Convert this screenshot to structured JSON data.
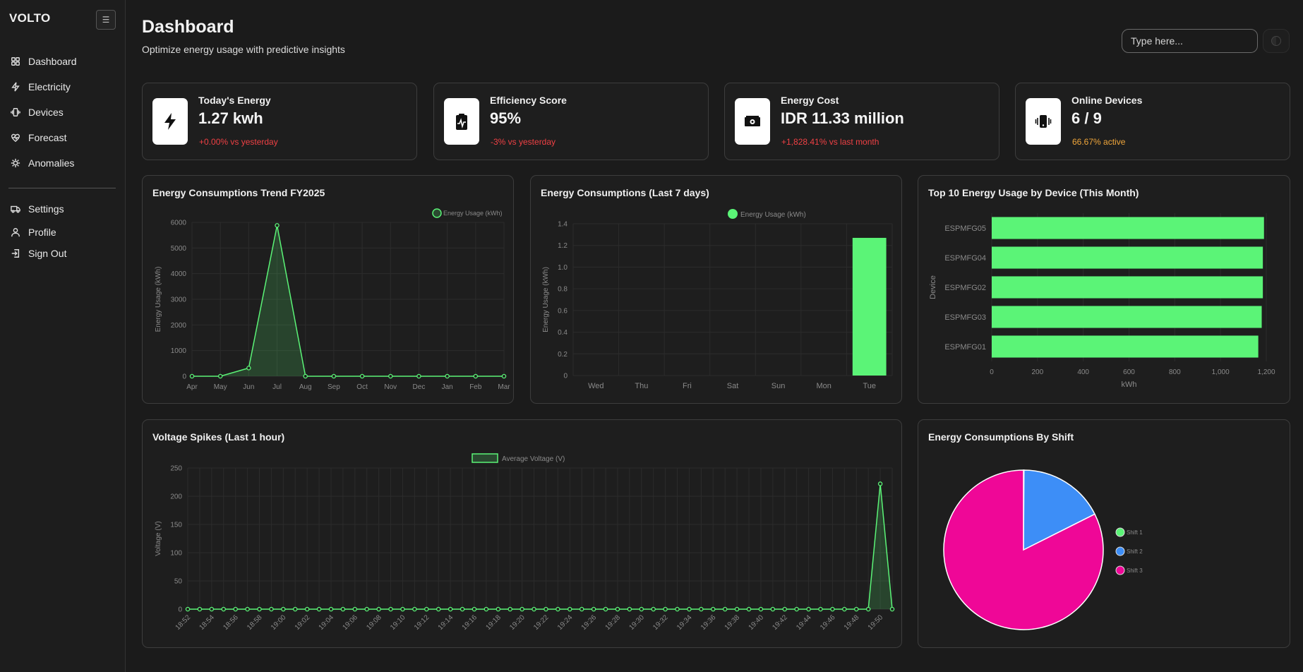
{
  "sidebar": {
    "logo": "VOLTO",
    "toggle_icon": "☰",
    "items": [
      {
        "label": "Dashboard",
        "icon": "grid-icon"
      },
      {
        "label": "Electricity",
        "icon": "bolt-icon"
      },
      {
        "label": "Devices",
        "icon": "device-icon"
      },
      {
        "label": "Forecast",
        "icon": "heart-pulse-icon"
      },
      {
        "label": "Anomalies",
        "icon": "bug-icon"
      }
    ],
    "bottom_items": [
      {
        "label": "Settings",
        "icon": "truck-icon"
      },
      {
        "label": "Profile",
        "icon": "user-icon"
      },
      {
        "label": "Sign Out",
        "icon": "sign-out-icon"
      }
    ]
  },
  "header": {
    "title": "Dashboard",
    "subtitle": "Optimize energy usage with predictive insights",
    "search_placeholder": "Type here..."
  },
  "stats": [
    {
      "label": "Today's Energy",
      "value": "1.27 kwh",
      "delta": "+0.00% vs yesterday",
      "delta_color": "#ef4044",
      "icon": "bolt-icon"
    },
    {
      "label": "Efficiency Score",
      "value": "95%",
      "delta": "-3% vs yesterday",
      "delta_color": "#ef4044",
      "icon": "clipboard-pulse-icon"
    },
    {
      "label": "Energy Cost",
      "value": "IDR 11.33 million",
      "delta": "+1,828.41% vs last month",
      "delta_color": "#ef4044",
      "icon": "money-icon"
    },
    {
      "label": "Online Devices",
      "value": "6 / 9",
      "delta": "66.67% active",
      "delta_color": "#f0a63b",
      "icon": "phone-vibrate-icon"
    }
  ],
  "accent": "#5bf477",
  "chart_data": [
    {
      "type": "area",
      "title": "Energy Consumptions Trend FY2025",
      "categories": [
        "Apr",
        "May",
        "Jun",
        "Jul",
        "Aug",
        "Sep",
        "Oct",
        "Nov",
        "Dec",
        "Jan",
        "Feb",
        "Mar"
      ],
      "series": [
        {
          "name": "Energy Usage (kWh)",
          "values": [
            0,
            0,
            320,
            5880,
            0,
            0,
            0,
            0,
            0,
            0,
            0,
            0
          ]
        }
      ],
      "ylabel": "Energy Usage (kWh)",
      "ylim": [
        0,
        6000
      ],
      "yticks": [
        "0",
        "1000",
        "2000",
        "3000",
        "4000",
        "5000",
        "6000"
      ],
      "legend": "top-right"
    },
    {
      "type": "bar",
      "title": "Energy Consumptions (Last 7 days)",
      "categories": [
        "Wed",
        "Thu",
        "Fri",
        "Sat",
        "Sun",
        "Mon",
        "Tue"
      ],
      "series": [
        {
          "name": "Energy Usage (kWh)",
          "values": [
            0,
            0,
            0,
            0,
            0,
            0,
            1.27
          ]
        }
      ],
      "ylabel": "Energy Usage (kWh)",
      "ylim": [
        0,
        1.4
      ],
      "yticks": [
        "0",
        "0.2",
        "0.4",
        "0.6",
        "0.8",
        "1.0",
        "1.2",
        "1.4"
      ],
      "legend": "top"
    },
    {
      "type": "bar",
      "orientation": "horizontal",
      "title": "Top 10 Energy Usage by Device (This Month)",
      "categories": [
        "ESPMFG05",
        "ESPMFG04",
        "ESPMFG02",
        "ESPMFG03",
        "ESPMFG01"
      ],
      "values": [
        1190,
        1185,
        1185,
        1180,
        1165
      ],
      "xlabel": "kWh",
      "ylabel": "Device",
      "xlim": [
        0,
        1200
      ],
      "xticks": [
        "0",
        "200",
        "400",
        "600",
        "800",
        "1,000",
        "1,200"
      ]
    },
    {
      "type": "area",
      "title": "Voltage Spikes (Last 1 hour)",
      "x_labels": [
        "18:52",
        "18:54",
        "18:56",
        "18:58",
        "19:00",
        "19:02",
        "19:04",
        "19:06",
        "19:08",
        "19:10",
        "19:12",
        "19:14",
        "19:16",
        "19:18",
        "19:20",
        "19:22",
        "19:24",
        "19:26",
        "19:28",
        "19:30",
        "19:32",
        "19:34",
        "19:36",
        "19:38",
        "19:40",
        "19:42",
        "19:44",
        "19:46",
        "19:48",
        "19:50"
      ],
      "points": 60,
      "series": [
        {
          "name": "Average Voltage (V)",
          "values": [
            0,
            0,
            0,
            0,
            0,
            0,
            0,
            0,
            0,
            0,
            0,
            0,
            0,
            0,
            0,
            0,
            0,
            0,
            0,
            0,
            0,
            0,
            0,
            0,
            0,
            0,
            0,
            0,
            0,
            0,
            0,
            0,
            0,
            0,
            0,
            0,
            0,
            0,
            0,
            0,
            0,
            0,
            0,
            0,
            0,
            0,
            0,
            0,
            0,
            0,
            0,
            0,
            0,
            0,
            0,
            0,
            0,
            0,
            222,
            0
          ]
        }
      ],
      "ylabel": "Voltage (V)",
      "ylim": [
        0,
        250
      ],
      "yticks": [
        "0",
        "50",
        "100",
        "150",
        "200",
        "250"
      ],
      "legend": "top"
    },
    {
      "type": "pie",
      "title": "Energy Consumptions By Shift",
      "labels": [
        "Shift 1",
        "Shift 2",
        "Shift 3"
      ],
      "values": [
        0.1,
        17.5,
        82.4
      ],
      "colors": [
        "#5bf477",
        "#3d8ef7",
        "#ef0797"
      ],
      "legend": "right"
    }
  ]
}
